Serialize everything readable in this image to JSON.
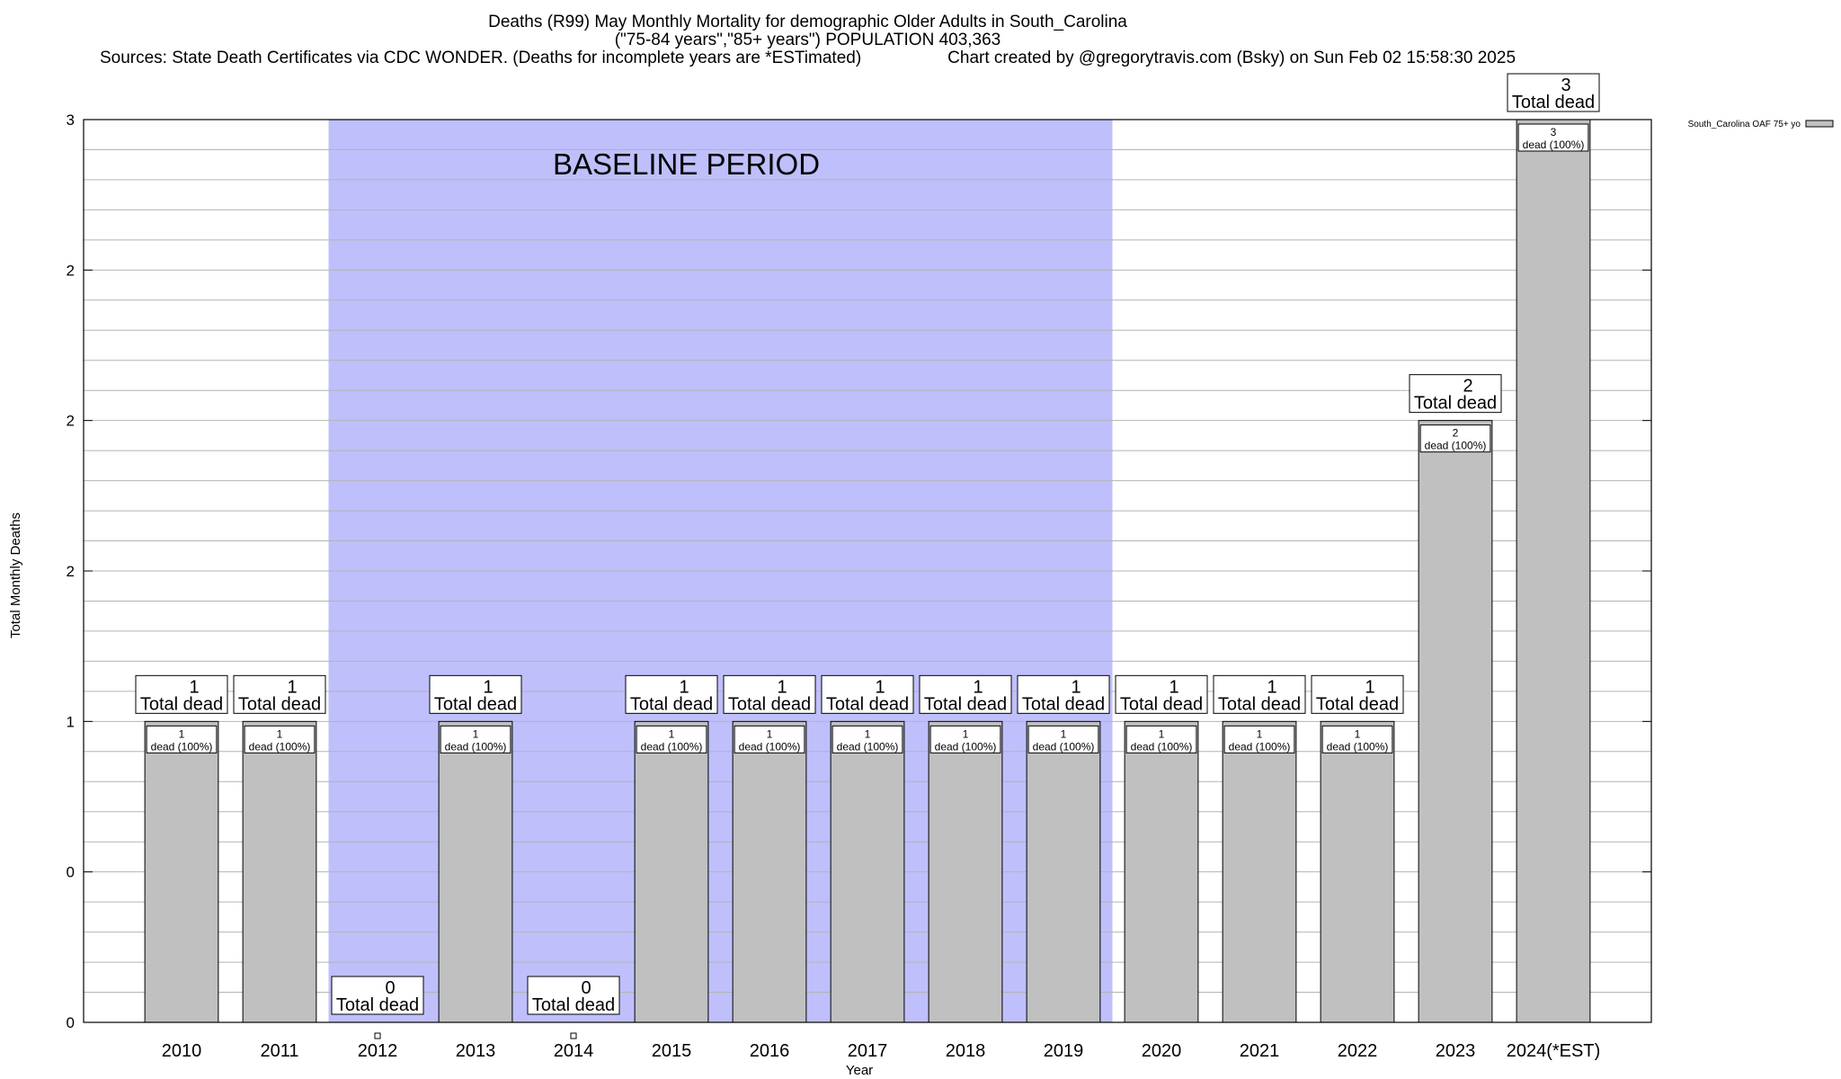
{
  "header": {
    "title": "Deaths (R99) May Monthly Mortality for demographic Older Adults in South_Carolina",
    "subtitle": "(\"75-84 years\",\"85+ years\") POPULATION 403,363",
    "sources": "Sources: State Death Certificates via CDC WONDER. (Deaths for incomplete years are *ESTimated)",
    "credit": "Chart created by @gregorytravis.com (Bsky) on Sun Feb 02 15:58:30 2025"
  },
  "colors": {
    "bar": "#c0c0c0",
    "baseline_band": "#bfbffc",
    "grid": "#b4b4b4"
  },
  "chart_data": {
    "type": "bar",
    "xlabel": "Year",
    "ylabel": "Total Monthly Deaths",
    "ylim": [
      0,
      3
    ],
    "y_ticks": [
      {
        "value": 0,
        "label": "0"
      },
      {
        "value": 0.5,
        "label": "0"
      },
      {
        "value": 1,
        "label": "1"
      },
      {
        "value": 1.5,
        "label": "2"
      },
      {
        "value": 2,
        "label": "2"
      },
      {
        "value": 2.5,
        "label": "2"
      },
      {
        "value": 3,
        "label": "3"
      }
    ],
    "categories": [
      "2010",
      "2011",
      "2012",
      "2013",
      "2014",
      "2015",
      "2016",
      "2017",
      "2018",
      "2019",
      "2020",
      "2021",
      "2022",
      "2023",
      "2024(*EST)"
    ],
    "series": [
      {
        "name": "South_Carolina OAF 75+ yo",
        "values": [
          1,
          1,
          0,
          1,
          0,
          1,
          1,
          1,
          1,
          1,
          1,
          1,
          1,
          2,
          3
        ]
      }
    ],
    "total_label_counts": [
      "1",
      "1",
      "0",
      "1",
      "0",
      "1",
      "1",
      "1",
      "1",
      "1",
      "1",
      "1",
      "1",
      "2",
      "3"
    ],
    "total_label_text": "Total dead",
    "segment_label_counts": [
      "1",
      "1",
      "",
      "1",
      "",
      "1",
      "1",
      "1",
      "1",
      "1",
      "1",
      "1",
      "1",
      "2",
      "3"
    ],
    "segment_label_text": "dead (100%)",
    "band": {
      "label": "BASELINE PERIOD",
      "from": "2012",
      "to": "2019"
    },
    "grid": true,
    "legend": "top-right"
  }
}
